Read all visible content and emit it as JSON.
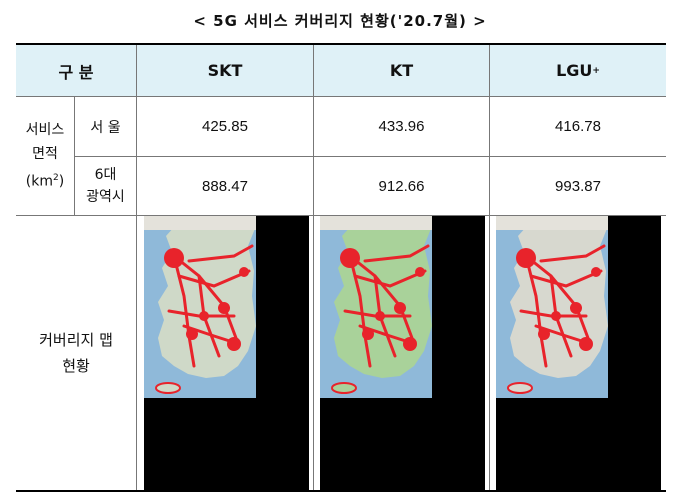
{
  "title": "< 5G 서비스 커버리지 현황('20.7월) >",
  "header": {
    "category": "구 분",
    "carriers": [
      "SKT",
      "KT",
      "LGU",
      "+"
    ]
  },
  "rows": {
    "area_label_line1": "서비스",
    "area_label_line2": "면적",
    "area_label_line3": "(km",
    "area_label_sup": "2",
    "area_label_close": ")",
    "seoul": {
      "label": "서 울",
      "values": [
        "425.85",
        "433.96",
        "416.78"
      ]
    },
    "metro": {
      "label_line1": "6대",
      "label_line2": "광역시",
      "values": [
        "888.47",
        "912.66",
        "993.87"
      ]
    },
    "map": {
      "label_line1": "커버리지 맵",
      "label_line2": "현황"
    }
  },
  "maps": [
    {
      "carrier": "SKT",
      "land_color": "#cfd9c8",
      "sea_color": "#8fb9d9"
    },
    {
      "carrier": "KT",
      "land_color": "#a9d29a",
      "sea_color": "#8fb9d9"
    },
    {
      "carrier": "LGU+",
      "land_color": "#d7d8cf",
      "sea_color": "#8fb9d9"
    }
  ],
  "colors": {
    "header_bg": "#dff1f7",
    "coverage": "#e8232b"
  }
}
